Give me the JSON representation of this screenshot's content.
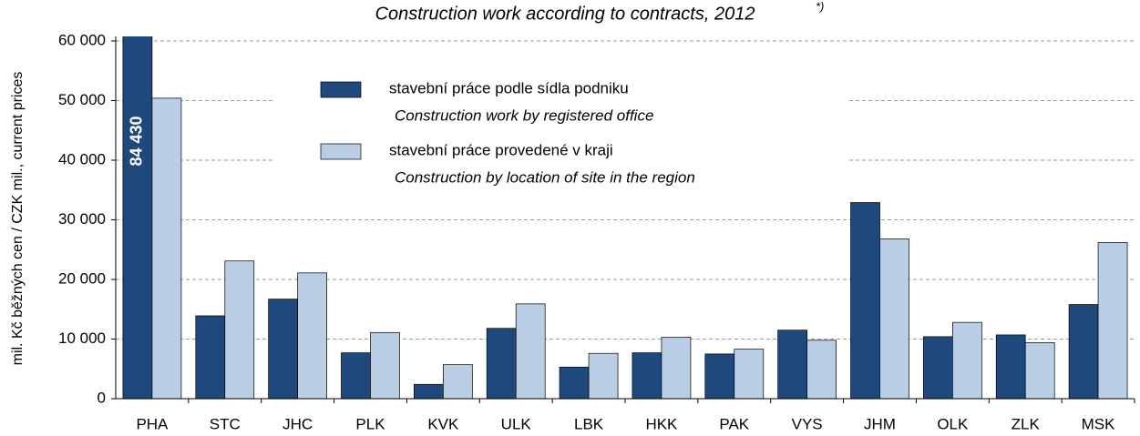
{
  "chart_data": {
    "type": "bar",
    "title": "Construction work according to contracts, 2012",
    "title_note": "*)",
    "y_label": "mil. Kč běžných cen / CZK mil., current prices",
    "categories": [
      "PHA",
      "STC",
      "JHC",
      "PLK",
      "KVK",
      "ULK",
      "LBK",
      "HKK",
      "PAK",
      "VYS",
      "JHM",
      "OLK",
      "ZLK",
      "MSK"
    ],
    "series": [
      {
        "name": "stavební práce podle sídla podniku",
        "name_en": "Construction work by registered office",
        "color": "#1f497d",
        "values": [
          84430,
          13900,
          16700,
          7700,
          2400,
          11800,
          5300,
          7700,
          7500,
          11500,
          32900,
          10400,
          10700,
          15800
        ],
        "value_labels": [
          "84 430",
          null,
          null,
          null,
          null,
          null,
          null,
          null,
          null,
          null,
          null,
          null,
          null,
          null
        ]
      },
      {
        "name": "stavební práce  provedené v kraji",
        "name_en": "Construction by location of site in the region",
        "color": "#b9cde5",
        "values": [
          50400,
          23100,
          21100,
          11100,
          5700,
          15900,
          7600,
          10300,
          8300,
          9800,
          26800,
          12800,
          9400,
          26200
        ]
      }
    ],
    "ylim": [
      0,
      60000
    ],
    "yticks": [
      {
        "value": 0,
        "label": "0"
      },
      {
        "value": 10000,
        "label": "10 000"
      },
      {
        "value": 20000,
        "label": "20 000"
      },
      {
        "value": 30000,
        "label": "30 000"
      },
      {
        "value": 40000,
        "label": "40 000"
      },
      {
        "value": 50000,
        "label": "50 000"
      },
      {
        "value": 60000,
        "label": "60 000"
      }
    ],
    "grid": true
  }
}
